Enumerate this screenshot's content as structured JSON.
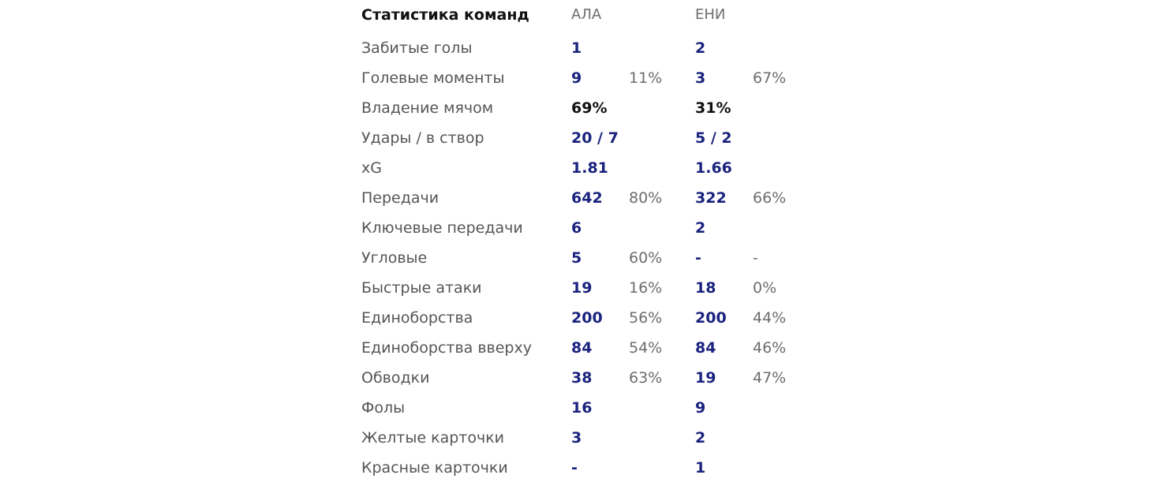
{
  "header": {
    "title": "Статистика команд",
    "team_a": "АЛА",
    "team_b": "ЕНИ"
  },
  "rows": [
    {
      "label": "Забитые голы",
      "a": "1",
      "a_pct": "",
      "b": "2",
      "b_pct": ""
    },
    {
      "label": "Голевые моменты",
      "a": "9",
      "a_pct": "11%",
      "b": "3",
      "b_pct": "67%"
    },
    {
      "label": "Владение мячом",
      "a": "69%",
      "a_pct": "",
      "b": "31%",
      "b_pct": ""
    },
    {
      "label": "Удары / в створ",
      "a": "20 / 7",
      "a_pct": "",
      "b": "5 / 2",
      "b_pct": ""
    },
    {
      "label": "xG",
      "a": "1.81",
      "a_pct": "",
      "b": "1.66",
      "b_pct": ""
    },
    {
      "label": "Передачи",
      "a": "642",
      "a_pct": "80%",
      "b": "322",
      "b_pct": "66%"
    },
    {
      "label": "Ключевые передачи",
      "a": "6",
      "a_pct": "",
      "b": "2",
      "b_pct": ""
    },
    {
      "label": "Угловые",
      "a": "5",
      "a_pct": "60%",
      "b": "-",
      "b_pct": "-"
    },
    {
      "label": "Быстрые атаки",
      "a": "19",
      "a_pct": "16%",
      "b": "18",
      "b_pct": "0%"
    },
    {
      "label": "Единоборства",
      "a": "200",
      "a_pct": "56%",
      "b": "200",
      "b_pct": "44%"
    },
    {
      "label": "Единоборства вверху",
      "a": "84",
      "a_pct": "54%",
      "b": "84",
      "b_pct": "46%"
    },
    {
      "label": "Обводки",
      "a": "38",
      "a_pct": "63%",
      "b": "19",
      "b_pct": "47%"
    },
    {
      "label": "Фолы",
      "a": "16",
      "a_pct": "",
      "b": "9",
      "b_pct": ""
    },
    {
      "label": "Желтые карточки",
      "a": "3",
      "a_pct": "",
      "b": "2",
      "b_pct": ""
    },
    {
      "label": "Красные карточки",
      "a": "-",
      "a_pct": "",
      "b": "1",
      "b_pct": ""
    }
  ],
  "colors": {
    "value_blue": "#1a237e",
    "label_gray": "#555555",
    "pct_gray": "#6d6d6d",
    "possession_dark": "#111111"
  }
}
